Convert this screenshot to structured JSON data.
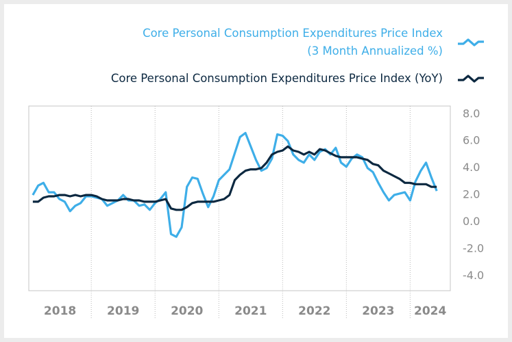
{
  "chart_data": {
    "type": "line",
    "x": [
      2018.083,
      2018.167,
      2018.25,
      2018.333,
      2018.417,
      2018.5,
      2018.583,
      2018.667,
      2018.75,
      2018.833,
      2018.917,
      2019.0,
      2019.083,
      2019.167,
      2019.25,
      2019.333,
      2019.417,
      2019.5,
      2019.583,
      2019.667,
      2019.75,
      2019.833,
      2019.917,
      2020.0,
      2020.083,
      2020.167,
      2020.25,
      2020.333,
      2020.417,
      2020.5,
      2020.583,
      2020.667,
      2020.75,
      2020.833,
      2020.917,
      2021.0,
      2021.083,
      2021.167,
      2021.25,
      2021.333,
      2021.417,
      2021.5,
      2021.583,
      2021.667,
      2021.75,
      2021.833,
      2021.917,
      2022.0,
      2022.083,
      2022.167,
      2022.25,
      2022.333,
      2022.417,
      2022.5,
      2022.583,
      2022.667,
      2022.75,
      2022.833,
      2022.917,
      2023.0,
      2023.083,
      2023.167,
      2023.25,
      2023.333,
      2023.417,
      2023.5,
      2023.583,
      2023.667,
      2023.75,
      2023.833,
      2023.917,
      2024.0,
      2024.083,
      2024.167,
      2024.25,
      2024.333,
      2024.417
    ],
    "series": [
      {
        "name": "Core Personal Consumption Expenditures Price Index\n(3 Month Annualized %)",
        "color": "#3eaee8",
        "values": [
          2.0,
          2.7,
          2.9,
          2.2,
          2.2,
          1.7,
          1.5,
          0.8,
          1.2,
          1.4,
          1.9,
          1.9,
          1.8,
          1.7,
          1.2,
          1.4,
          1.6,
          2.0,
          1.6,
          1.6,
          1.2,
          1.3,
          0.9,
          1.4,
          1.7,
          2.2,
          -0.9,
          -1.1,
          -0.4,
          2.6,
          3.3,
          3.2,
          2.1,
          1.1,
          1.9,
          3.1,
          3.5,
          3.9,
          5.1,
          6.3,
          6.6,
          5.6,
          4.6,
          3.8,
          4.0,
          4.7,
          6.5,
          6.4,
          6.0,
          5.0,
          4.6,
          4.4,
          5.0,
          4.6,
          5.2,
          5.4,
          5.0,
          5.5,
          4.4,
          4.1,
          4.7,
          5.0,
          4.8,
          4.0,
          3.7,
          2.9,
          2.2,
          1.6,
          2.0,
          2.1,
          2.2,
          1.6,
          3.0,
          3.8,
          4.4,
          3.3,
          2.3
        ]
      },
      {
        "name": "Core Personal Consumption Expenditures Price Index (YoY)",
        "color": "#0c2840",
        "values": [
          1.5,
          1.5,
          1.8,
          1.9,
          1.9,
          2.0,
          2.0,
          1.9,
          2.0,
          1.9,
          2.0,
          2.0,
          1.9,
          1.7,
          1.6,
          1.6,
          1.6,
          1.7,
          1.7,
          1.6,
          1.6,
          1.5,
          1.5,
          1.5,
          1.6,
          1.7,
          1.0,
          0.9,
          0.9,
          1.1,
          1.4,
          1.5,
          1.5,
          1.5,
          1.5,
          1.6,
          1.7,
          2.0,
          3.1,
          3.5,
          3.8,
          3.9,
          3.9,
          4.0,
          4.4,
          5.0,
          5.2,
          5.3,
          5.6,
          5.3,
          5.2,
          5.0,
          5.2,
          5.0,
          5.4,
          5.3,
          5.1,
          4.9,
          4.8,
          4.8,
          4.8,
          4.8,
          4.7,
          4.6,
          4.3,
          4.2,
          3.8,
          3.6,
          3.4,
          3.2,
          2.9,
          2.9,
          2.8,
          2.8,
          2.8,
          2.6,
          2.6
        ]
      }
    ],
    "xlim": [
      2018.02,
      2024.63
    ],
    "xticks": [
      {
        "value": 2018,
        "label": "2018"
      },
      {
        "value": 2019,
        "label": "2019"
      },
      {
        "value": 2020,
        "label": "2020"
      },
      {
        "value": 2021,
        "label": "2021"
      },
      {
        "value": 2022,
        "label": "2022"
      },
      {
        "value": 2023,
        "label": "2023"
      },
      {
        "value": 2024,
        "label": "2024"
      }
    ],
    "ylim": [
      -5.1,
      8.6
    ],
    "yticks": [
      {
        "value": 8,
        "label": "8.0"
      },
      {
        "value": 6,
        "label": "6.0"
      },
      {
        "value": 4,
        "label": "4.0"
      },
      {
        "value": 2,
        "label": "2.0"
      },
      {
        "value": 0,
        "label": "0.0"
      },
      {
        "value": -2,
        "label": "-2.0"
      },
      {
        "value": -4,
        "label": "-4.0"
      }
    ],
    "xgrid": true,
    "legend": "top-right"
  }
}
